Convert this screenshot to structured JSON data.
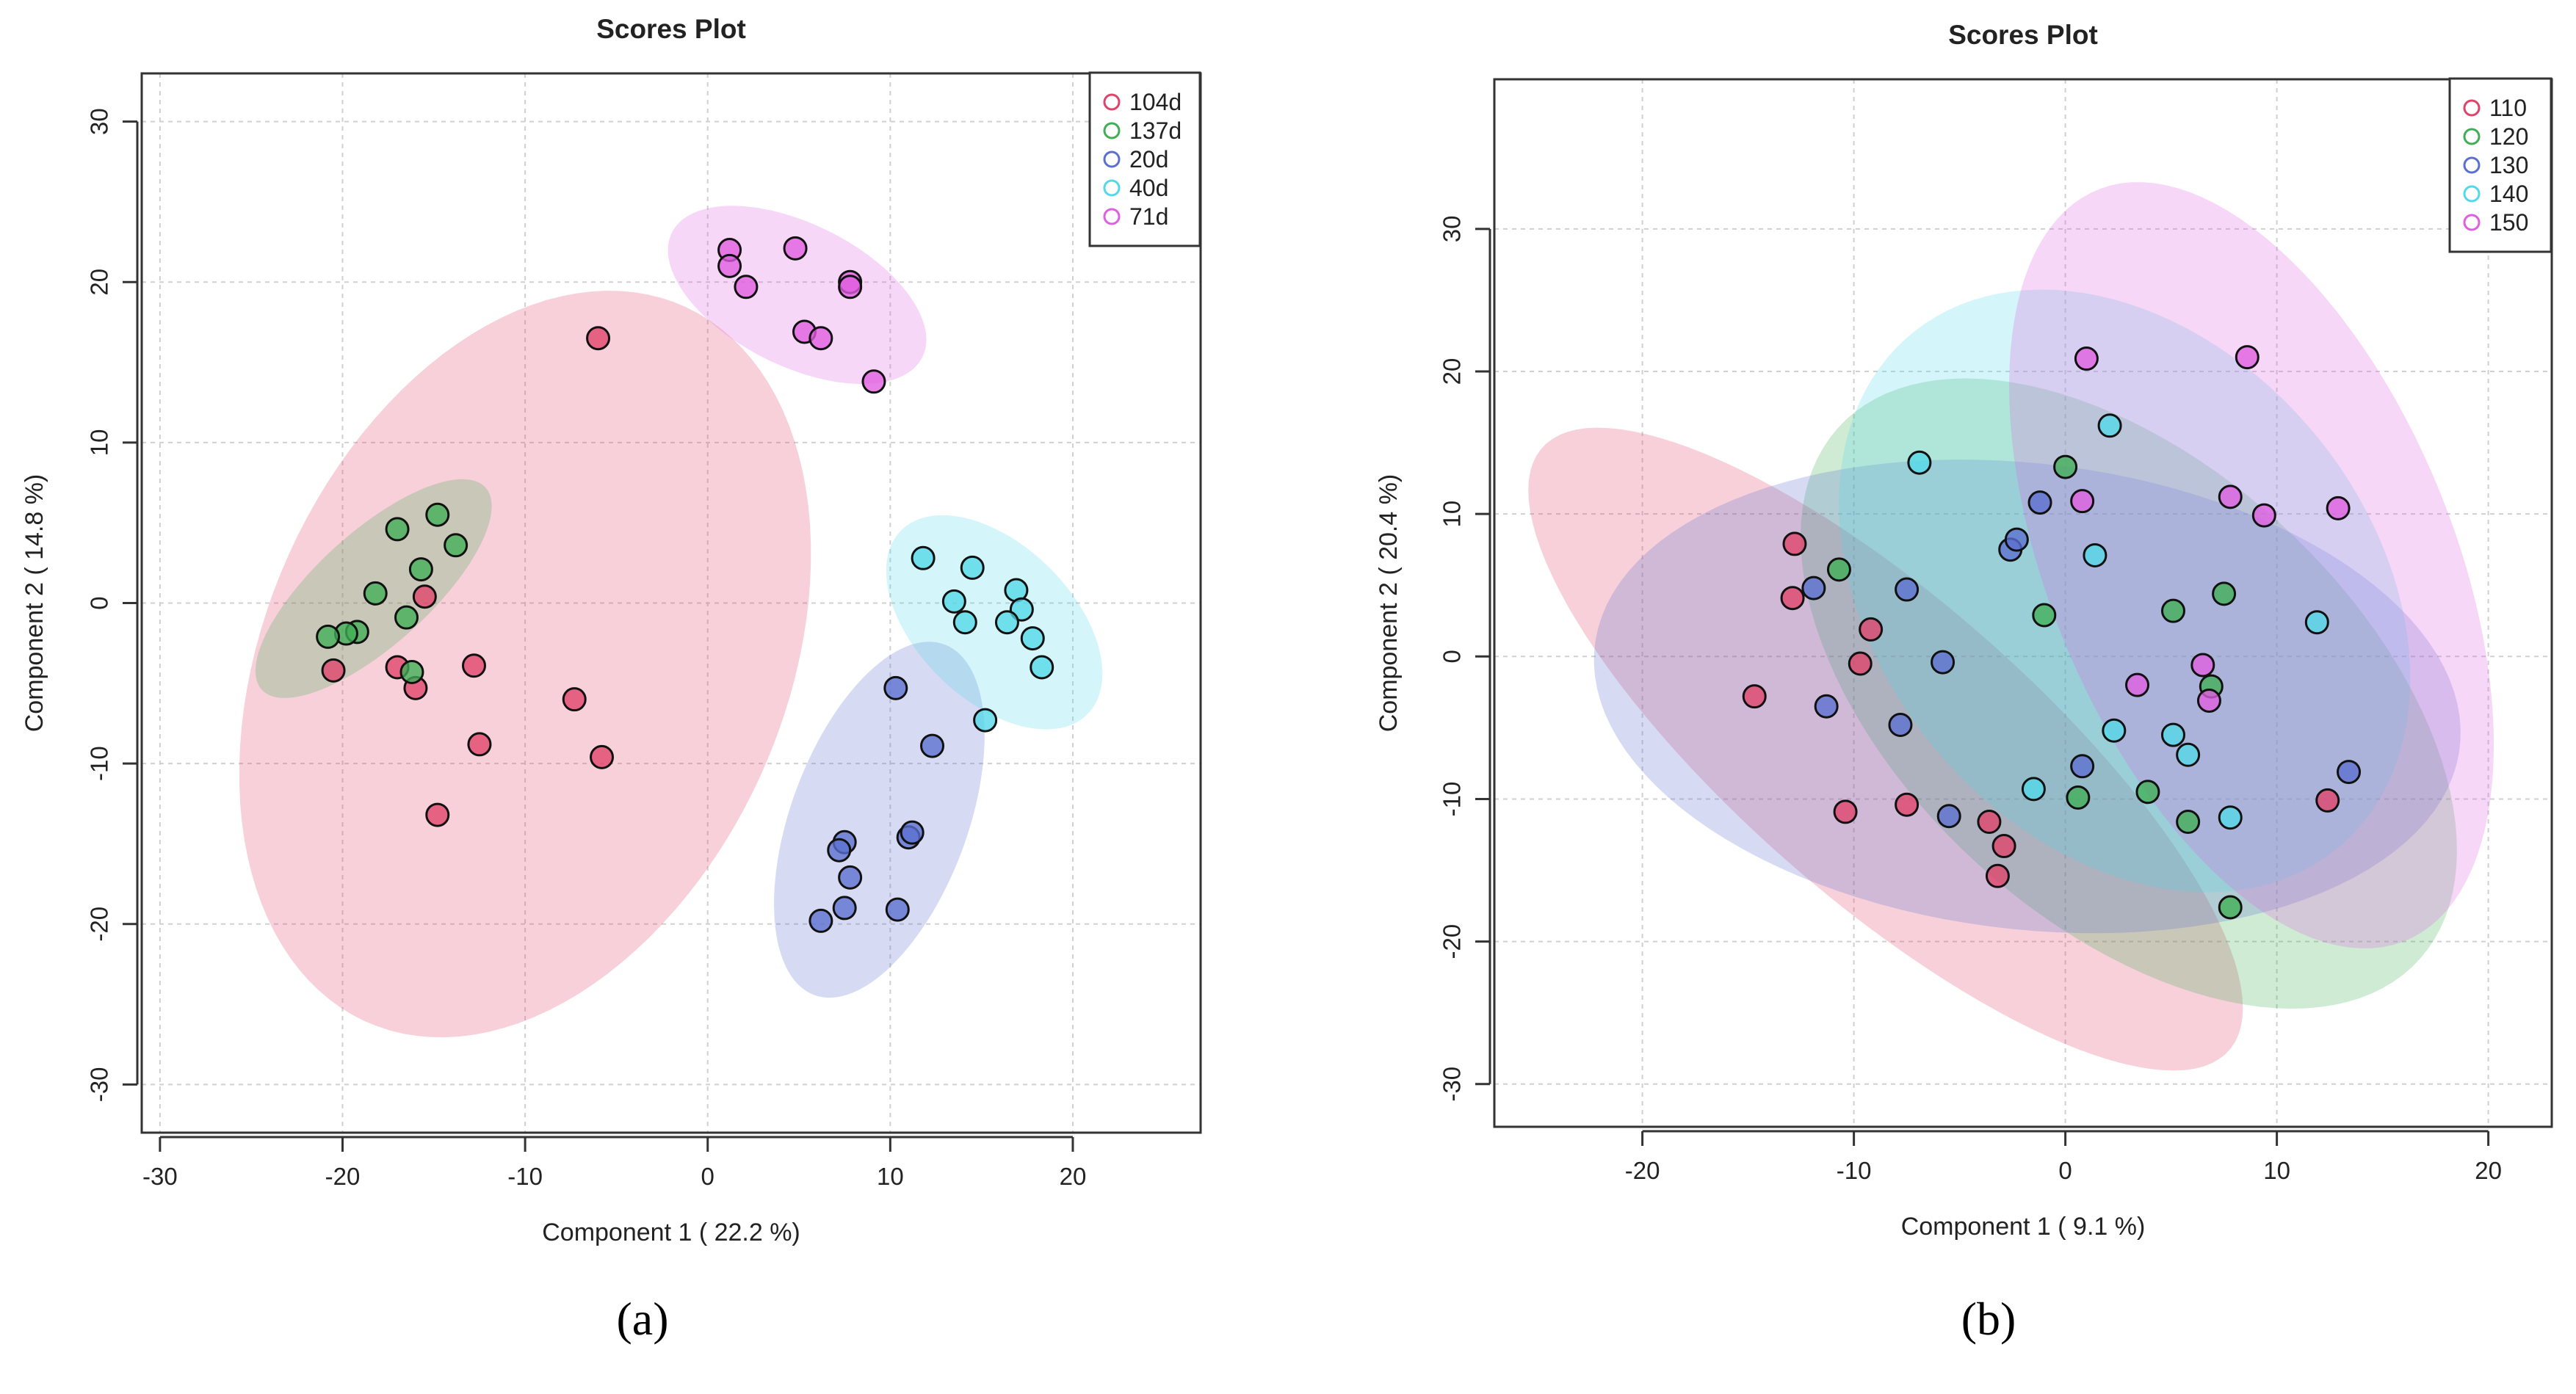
{
  "figure": {
    "panels": [
      {
        "label": "(a)",
        "letter": "a"
      },
      {
        "label": "(b)",
        "letter": "b"
      }
    ]
  },
  "chart_data": [
    {
      "type": "scatter",
      "panel": "(a)",
      "title": "Scores Plot",
      "xlabel": "Component 1 ( 22.2 %)",
      "ylabel": "Component 2 ( 14.8 %)",
      "xlim": [
        -31,
        27
      ],
      "ylim": [
        -33,
        33
      ],
      "xticks": [
        -30,
        -20,
        -10,
        0,
        10,
        20
      ],
      "yticks": [
        -30,
        -20,
        -10,
        0,
        10,
        20,
        30
      ],
      "grid": true,
      "legend_position": "top-right",
      "series": [
        {
          "name": "104d",
          "color": "#e0436a",
          "points": [
            [
              -6,
              16.5
            ],
            [
              -15.5,
              0.4
            ],
            [
              -17,
              -4
            ],
            [
              -16,
              -5.3
            ],
            [
              -20.5,
              -4.2
            ],
            [
              -12.8,
              -3.9
            ],
            [
              -12.5,
              -8.8
            ],
            [
              -7.3,
              -6
            ],
            [
              -5.8,
              -9.6
            ],
            [
              -14.8,
              -13.2
            ]
          ],
          "ellipse": {
            "cx": -10,
            "cy": -3.8,
            "rx": 24,
            "ry": 14.5,
            "angle": 72
          }
        },
        {
          "name": "137d",
          "color": "#3fae55",
          "points": [
            [
              -17,
              4.6
            ],
            [
              -14.8,
              5.5
            ],
            [
              -13.8,
              3.6
            ],
            [
              -15.7,
              2.1
            ],
            [
              -18.2,
              0.6
            ],
            [
              -16.5,
              -0.9
            ],
            [
              -19.2,
              -1.8
            ],
            [
              -19.8,
              -1.9
            ],
            [
              -20.8,
              -2.1
            ],
            [
              -16.2,
              -4.3
            ]
          ],
          "ellipse": {
            "cx": -18.3,
            "cy": 0.9,
            "rx": 8.8,
            "ry": 3.3,
            "angle": 47
          }
        },
        {
          "name": "20d",
          "color": "#5b6fd0",
          "points": [
            [
              10.3,
              -5.3
            ],
            [
              12.3,
              -8.9
            ],
            [
              7.5,
              -14.9
            ],
            [
              7.2,
              -15.4
            ],
            [
              11,
              -14.6
            ],
            [
              11.2,
              -14.3
            ],
            [
              7.8,
              -17.1
            ],
            [
              7.5,
              -19
            ],
            [
              10.4,
              -19.1
            ],
            [
              6.2,
              -19.8
            ]
          ],
          "ellipse": {
            "cx": 9.4,
            "cy": -13.5,
            "rx": 11.5,
            "ry": 4.9,
            "angle": 73
          }
        },
        {
          "name": "40d",
          "color": "#52d8e8",
          "points": [
            [
              11.8,
              2.8
            ],
            [
              14.5,
              2.2
            ],
            [
              16.9,
              0.8
            ],
            [
              13.5,
              0.1
            ],
            [
              17.2,
              -0.4
            ],
            [
              14.1,
              -1.2
            ],
            [
              16.4,
              -1.2
            ],
            [
              17.8,
              -2.2
            ],
            [
              18.3,
              -4
            ],
            [
              15.2,
              -7.3
            ]
          ],
          "ellipse": {
            "cx": 15.7,
            "cy": -1.2,
            "rx": 7.7,
            "ry": 4.5,
            "angle": -52
          }
        },
        {
          "name": "71d",
          "color": "#e05ee0",
          "points": [
            [
              1.2,
              22
            ],
            [
              4.8,
              22.1
            ],
            [
              1.2,
              21
            ],
            [
              2.1,
              19.7
            ],
            [
              7.8,
              20
            ],
            [
              7.8,
              19.7
            ],
            [
              5.3,
              16.9
            ],
            [
              6.2,
              16.5
            ],
            [
              9.1,
              13.8
            ]
          ],
          "ellipse": {
            "cx": 4.9,
            "cy": 19.2,
            "rx": 7.9,
            "ry": 4.3,
            "angle": -32
          }
        }
      ]
    },
    {
      "type": "scatter",
      "panel": "(b)",
      "title": "Scores Plot",
      "xlabel": "Component 1 ( 9.1 %)",
      "ylabel": "Component 2 ( 20.4 %)",
      "xlim": [
        -27,
        23
      ],
      "ylim": [
        -33,
        40.5
      ],
      "xticks": [
        -20,
        -10,
        0,
        10,
        20
      ],
      "yticks": [
        -30,
        -20,
        -10,
        0,
        10,
        20,
        30
      ],
      "grid": true,
      "legend_position": "top-right",
      "series": [
        {
          "name": "110",
          "color": "#e0436a",
          "points": [
            [
              -12.8,
              7.9
            ],
            [
              -12.9,
              4.1
            ],
            [
              -9.2,
              1.9
            ],
            [
              -9.7,
              -0.5
            ],
            [
              -14.7,
              -2.8
            ],
            [
              -10.4,
              -10.9
            ],
            [
              -7.5,
              -10.4
            ],
            [
              -3.6,
              -11.6
            ],
            [
              -2.9,
              -13.3
            ],
            [
              -3.2,
              -15.4
            ],
            [
              12.4,
              -10.1
            ]
          ],
          "ellipse": {
            "cx": -8.5,
            "cy": -6.5,
            "rx": 26.9,
            "ry": 8.4,
            "angle": -55
          }
        },
        {
          "name": "120",
          "color": "#3fae55",
          "points": [
            [
              -10.7,
              6.1
            ],
            [
              0,
              13.3
            ],
            [
              -1,
              2.9
            ],
            [
              5.1,
              3.2
            ],
            [
              7.5,
              4.4
            ],
            [
              6.9,
              -2.1
            ],
            [
              0.6,
              -9.9
            ],
            [
              3.9,
              -9.5
            ],
            [
              5.8,
              -11.6
            ],
            [
              7.8,
              -17.6
            ]
          ],
          "ellipse": {
            "cx": 3,
            "cy": -2.6,
            "rx": 24,
            "ry": 12.4,
            "angle": -63
          }
        },
        {
          "name": "130",
          "color": "#5b6fd0",
          "points": [
            [
              -11.9,
              4.8
            ],
            [
              -7.5,
              4.7
            ],
            [
              -5.8,
              -0.4
            ],
            [
              -11.3,
              -3.5
            ],
            [
              -7.8,
              -4.8
            ],
            [
              -5.5,
              -11.2
            ],
            [
              -1.2,
              10.8
            ],
            [
              -2.6,
              7.5
            ],
            [
              -2.3,
              8.2
            ],
            [
              0.8,
              -7.7
            ],
            [
              13.4,
              -8.1
            ]
          ],
          "ellipse": {
            "cx": -1.8,
            "cy": -2.8,
            "rx": 20.9,
            "ry": 16.1,
            "angle": -18
          }
        },
        {
          "name": "140",
          "color": "#52d8e8",
          "points": [
            [
              -6.9,
              13.6
            ],
            [
              2.1,
              16.2
            ],
            [
              1.4,
              7.1
            ],
            [
              11.9,
              2.4
            ],
            [
              2.3,
              -5.2
            ],
            [
              5.1,
              -5.5
            ],
            [
              5.8,
              -6.9
            ],
            [
              -1.5,
              -9.3
            ],
            [
              7.8,
              -11.3
            ]
          ],
          "ellipse": {
            "cx": 2.8,
            "cy": 4.6,
            "rx": 21.7,
            "ry": 12.6,
            "angle": -74
          }
        },
        {
          "name": "150",
          "color": "#e05ee0",
          "points": [
            [
              1,
              20.9
            ],
            [
              8.6,
              21
            ],
            [
              7.8,
              11.2
            ],
            [
              9.4,
              9.9
            ],
            [
              12.9,
              10.4
            ],
            [
              0.8,
              10.9
            ],
            [
              6.5,
              -0.6
            ],
            [
              3.4,
              -2
            ],
            [
              6.8,
              -3.1
            ]
          ],
          "ellipse": {
            "cx": 8.8,
            "cy": 6.4,
            "rx": 27.5,
            "ry": 9.9,
            "angle": -77
          }
        }
      ]
    }
  ]
}
